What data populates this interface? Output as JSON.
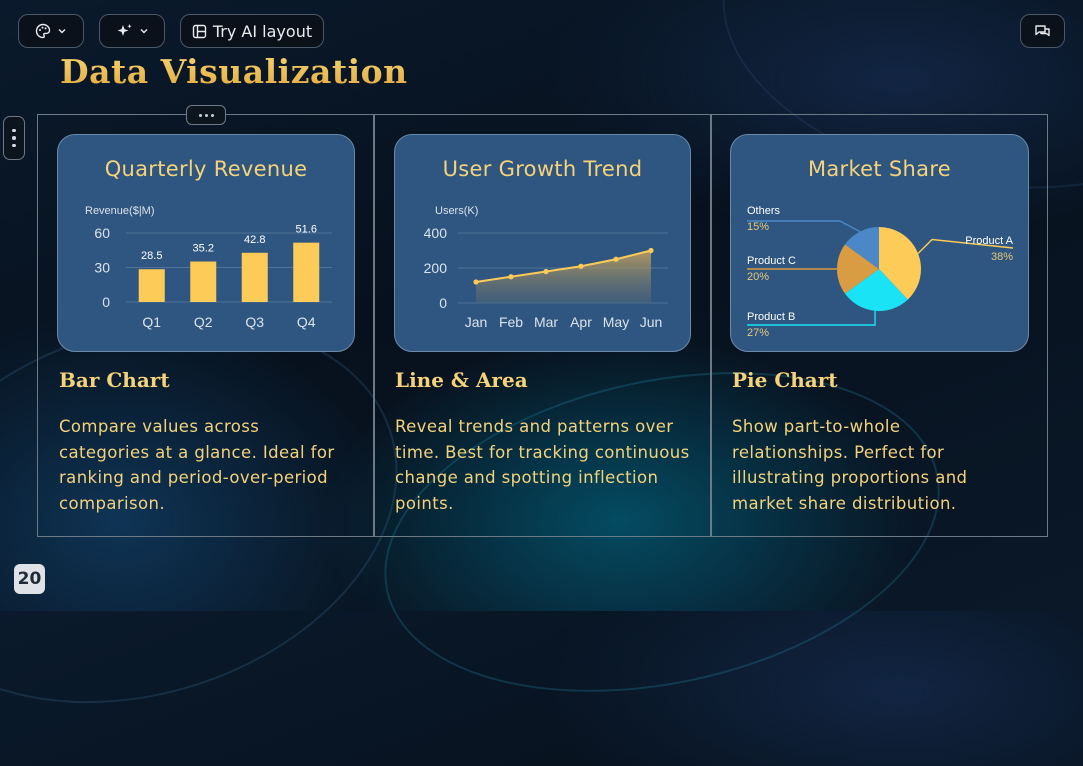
{
  "toolbar": {
    "theme_icon": "palette-icon",
    "ai_icon": "sparkle-icon",
    "try_ai_label": "Try AI layout",
    "comment_icon": "comments-icon"
  },
  "slide": {
    "title": "Data Visualization",
    "page_number": "20"
  },
  "sections": [
    {
      "card_title": "Quarterly Revenue",
      "heading": "Bar Chart",
      "description": "Compare values across categories at a glance. Ideal for ranking and period-over-period comparison."
    },
    {
      "card_title": "User Growth Trend",
      "heading": "Line & Area",
      "description": "Reveal trends and patterns over time. Best for tracking continuous change and spotting inflection points."
    },
    {
      "card_title": "Market Share",
      "heading": "Pie Chart",
      "description": "Show part-to-whole relationships. Perfect for illustrating proportions and market share distribution."
    }
  ],
  "colors": {
    "accent": "#f6d37a",
    "bar": "#fccb58",
    "card_bg": "#2e5680",
    "cyan": "#19e3f5"
  },
  "chart_data": [
    {
      "type": "bar",
      "title": "Quarterly Revenue",
      "ylabel": "Revenue($|M)",
      "categories": [
        "Q1",
        "Q2",
        "Q3",
        "Q4"
      ],
      "values": [
        28.5,
        35.2,
        42.8,
        51.6
      ],
      "yticks": [
        0,
        30,
        60
      ],
      "ylim": [
        0,
        60
      ]
    },
    {
      "type": "area",
      "title": "User Growth Trend",
      "ylabel": "Users(K)",
      "categories": [
        "Jan",
        "Feb",
        "Mar",
        "Apr",
        "May",
        "Jun"
      ],
      "values": [
        120,
        150,
        180,
        210,
        250,
        300
      ],
      "yticks": [
        0,
        200,
        400
      ],
      "ylim": [
        0,
        400
      ]
    },
    {
      "type": "pie",
      "title": "Market Share",
      "slices": [
        {
          "label": "Product A",
          "value": 38,
          "value_label": "38%",
          "color": "#fccb58"
        },
        {
          "label": "Product B",
          "value": 27,
          "value_label": "27%",
          "color": "#19e3f5"
        },
        {
          "label": "Product C",
          "value": 20,
          "value_label": "20%",
          "color": "#d99c42"
        },
        {
          "label": "Others",
          "value": 15,
          "value_label": "15%",
          "color": "#4a88c8"
        }
      ]
    }
  ]
}
